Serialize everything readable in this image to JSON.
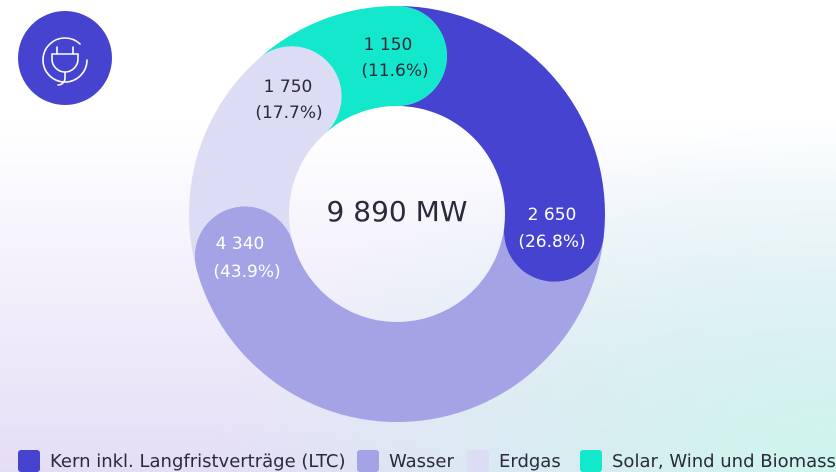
{
  "chart_data": {
    "type": "donut",
    "center_label": "9 890 MW",
    "categories": [
      "Kern inkl. Langfristverträge (LTC)",
      "Wasser",
      "Erdgas",
      "Solar, Wind und Biomasse"
    ],
    "values": [
      2650,
      4340,
      1750,
      1150
    ],
    "value_labels": [
      "2 650",
      "4 340",
      "1 750",
      "1 150"
    ],
    "percentages": [
      26.8,
      43.9,
      17.7,
      11.6
    ],
    "percentage_labels": [
      "(26.8%)",
      "(43.9%)",
      "(17.7%)",
      "(11.6%)"
    ],
    "colors": [
      "#4543cf",
      "#a3a3e6",
      "#dcdcf4",
      "#14e8cc"
    ],
    "legend": "bottom"
  }
}
